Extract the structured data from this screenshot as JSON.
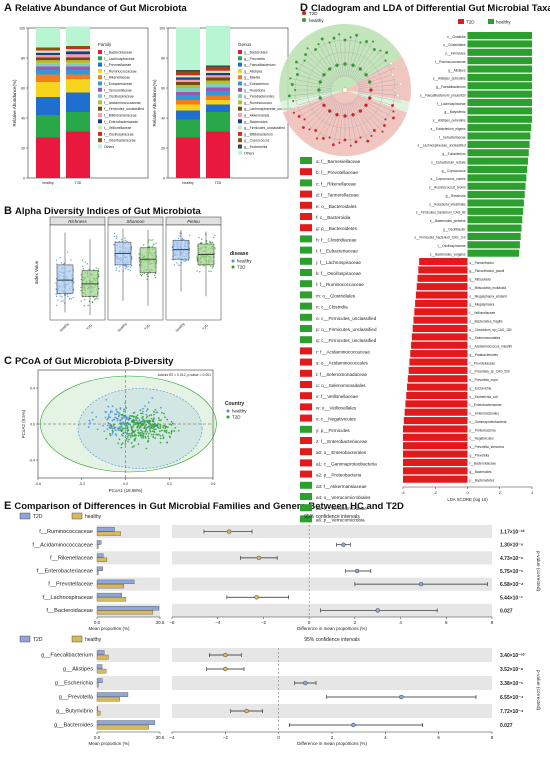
{
  "panels": {
    "A": {
      "letter": "A",
      "title": "Relative Abundance of Gut Microbiota"
    },
    "B": {
      "letter": "B",
      "title": "Alpha Diversity Indices of Gut Microbiota"
    },
    "C": {
      "letter": "C",
      "title": "PCoA of Gut Microbiota β-Diversity"
    },
    "D": {
      "letter": "D",
      "title": "Cladogram and LDA of Differential Gut Microbial Taxa"
    },
    "E": {
      "letter": "E",
      "title": "Comparison of Differences in Gut Microbial Families and Genera Between HC and T2D"
    }
  },
  "colors": {
    "T2D": "#e31a1c",
    "healthy": "#2ca02c",
    "E_T2D": "#8ea6d8",
    "E_healthy": "#d6b95a"
  },
  "chart_data": [
    {
      "id": "A_family",
      "type": "bar",
      "stacked": true,
      "ylabel": "Relative Abundance(%)",
      "ylim": [
        0,
        100
      ],
      "yticks": [
        0,
        20,
        40,
        60,
        80,
        100
      ],
      "categories": [
        "healthy",
        "T2D"
      ],
      "legend_title": "Family",
      "series": [
        {
          "name": "f__Bacteroidaceae",
          "color": "#e8193c",
          "values": [
            27,
            31
          ]
        },
        {
          "name": "f__Lachnospiraceae",
          "color": "#29a84a",
          "values": [
            15,
            13
          ]
        },
        {
          "name": "f__Prevotellaceae",
          "color": "#1f6fd1",
          "values": [
            12,
            13
          ]
        },
        {
          "name": "f__Ruminococcaceae",
          "color": "#f7d41c",
          "values": [
            10,
            9
          ]
        },
        {
          "name": "f__Rikenellaceae",
          "color": "#f47b20",
          "values": [
            5,
            3
          ]
        },
        {
          "name": "f__Eubacteriaceae",
          "color": "#2e9bd6",
          "values": [
            3,
            3
          ]
        },
        {
          "name": "f__Tannerellaceae",
          "color": "#9b59b6",
          "values": [
            2.5,
            2.5
          ]
        },
        {
          "name": "f__Oscillospiraceae",
          "color": "#7fcdbb",
          "values": [
            2,
            2
          ]
        },
        {
          "name": "f__Acidaminococcaceae",
          "color": "#bcbd22",
          "values": [
            2,
            2
          ]
        },
        {
          "name": "f__Firmicutes_unclassified",
          "color": "#6b4e16",
          "values": [
            2,
            2
          ]
        },
        {
          "name": "f__Bifidobacteriaceae",
          "color": "#ff9da7",
          "values": [
            1.5,
            2
          ]
        },
        {
          "name": "f__Enterobacteriaceae",
          "color": "#1b3a8a",
          "values": [
            1.5,
            2
          ]
        },
        {
          "name": "f__Veillonellaceae",
          "color": "#c7e9c0",
          "values": [
            1.5,
            1.5
          ]
        },
        {
          "name": "f__Oscillospiraceae",
          "color": "#d62728",
          "values": [
            1,
            1
          ]
        },
        {
          "name": "f__Odoribacteraceae",
          "color": "#8c510a",
          "values": [
            1,
            1
          ]
        },
        {
          "name": "Others",
          "color": "#b8f5d2",
          "values": [
            13,
            13
          ]
        }
      ]
    },
    {
      "id": "A_genus",
      "type": "bar",
      "stacked": true,
      "ylabel": "Relative Abundance(%)",
      "ylim": [
        0,
        100
      ],
      "yticks": [
        0,
        20,
        40,
        60,
        80,
        100
      ],
      "categories": [
        "healthy",
        "T2D"
      ],
      "legend_title": "Genus",
      "series": [
        {
          "name": "g__Bacteroides",
          "color": "#e8193c",
          "values": [
            27,
            31
          ]
        },
        {
          "name": "g__Prevotella",
          "color": "#29a84a",
          "values": [
            12,
            13
          ]
        },
        {
          "name": "g__Faecalibacterium",
          "color": "#1f6fd1",
          "values": [
            6,
            5
          ]
        },
        {
          "name": "g__Alistipes",
          "color": "#f7d41c",
          "values": [
            4,
            3
          ]
        },
        {
          "name": "g__Blautia",
          "color": "#f47b20",
          "values": [
            3,
            3
          ]
        },
        {
          "name": "g__Eubacterium",
          "color": "#2e9bd6",
          "values": [
            3,
            3
          ]
        },
        {
          "name": "g__Roseburia",
          "color": "#9b59b6",
          "values": [
            2.5,
            2.5
          ]
        },
        {
          "name": "g__Parabacteroides",
          "color": "#7fcdbb",
          "values": [
            2.5,
            2.5
          ]
        },
        {
          "name": "g__Ruminococcus",
          "color": "#bcbd22",
          "values": [
            2,
            2
          ]
        },
        {
          "name": "g__Lachnospiraceae_unclassified",
          "color": "#6b4e16",
          "values": [
            2,
            2
          ]
        },
        {
          "name": "g__Akkermansia",
          "color": "#ff9da7",
          "values": [
            1.5,
            1.5
          ]
        },
        {
          "name": "g__Bacteroides",
          "color": "#1b3a8a",
          "values": [
            1.5,
            1.5
          ]
        },
        {
          "name": "g__Firmicutes_unclassified",
          "color": "#c7e9c0",
          "values": [
            1.5,
            1.5
          ]
        },
        {
          "name": "g__Bifidobacterium",
          "color": "#d62728",
          "values": [
            1.5,
            1.5
          ]
        },
        {
          "name": "g__Coprococcus",
          "color": "#8c510a",
          "values": [
            1,
            1
          ]
        },
        {
          "name": "g__Escherichia",
          "color": "#444444",
          "values": [
            1,
            1
          ]
        },
        {
          "name": "Others",
          "color": "#b8f5d2",
          "values": [
            28.5,
            26.5
          ]
        }
      ]
    },
    {
      "id": "B",
      "type": "box",
      "ylabel": "Index Value",
      "categories": [
        "healthy",
        "T2D"
      ],
      "facets": [
        {
          "name": "Richness",
          "stats": [
            [
              0.08,
              0.28,
              0.42,
              0.58,
              0.92
            ],
            [
              0.05,
              0.25,
              0.38,
              0.52,
              0.85
            ]
          ]
        },
        {
          "name": "Shannon",
          "stats": [
            [
              0.2,
              0.58,
              0.7,
              0.82,
              0.96
            ],
            [
              0.15,
              0.5,
              0.64,
              0.76,
              0.95
            ]
          ]
        },
        {
          "name": "Pielou",
          "stats": [
            [
              0.3,
              0.64,
              0.74,
              0.84,
              0.95
            ],
            [
              0.25,
              0.58,
              0.69,
              0.8,
              0.93
            ]
          ]
        }
      ],
      "legend_title": "disease",
      "legend": [
        "healthy",
        "T2D"
      ]
    },
    {
      "id": "C",
      "type": "scatter",
      "xlabel": "PCoA1 (18.98%)",
      "ylabel": "PCoA2 (9.5%)",
      "xlim": [
        -0.6,
        0.6
      ],
      "ylim": [
        -0.6,
        0.6
      ],
      "xticks": [
        -0.6,
        -0.3,
        0.0,
        0.3,
        0.6
      ],
      "yticks": [
        -0.4,
        0.0,
        0.4
      ],
      "annotation": "Adonis R2 = 0.012, p-value = 0.001",
      "legend_title": "Country",
      "legend": [
        "healthy",
        "T2D"
      ]
    },
    {
      "id": "D_lda",
      "type": "bar",
      "orientation": "horizontal",
      "xlabel": "LDA SCORE (log 10)",
      "xlim": [
        -4,
        4
      ],
      "xticks": [
        -4,
        -2,
        0,
        2,
        4
      ],
      "legend": [
        "T2D",
        "healthy"
      ],
      "series": [
        {
          "name": "healthy",
          "labels": [
            "c__Clostridia",
            "o__Clostridiales",
            "p__Firmicutes",
            "f__Ruminococcaceae",
            "g__Alistipes",
            "s__Alistipes_putredinis",
            "g__Faecalibacterium",
            "s__Faecalibacterium_prausnitzii",
            "f__Lachnospiraceae",
            "g__Butyrivibrio",
            "s__Alistipes_putredinis",
            "s__Eubacterium_eligens",
            "f__Eubacteriaceae",
            "s__Lachnospiraceae_unclassified",
            "g__Eubacterium",
            "s__Eubacterium_rectale",
            "g__Coprococcus",
            "s__Coprococcus_comes",
            "s__Ruminococcus_bromii",
            "g__Roseburia",
            "s__Roseburia_intestinalis",
            "s__Firmicutes_bacterium_CAG_83",
            "s__Bacteroides_plebeius",
            "g__Oscillibacter",
            "s__Firmicutes_bacterium_CAG_110",
            "f__Oscillospiraceae",
            "s__Bacteroides_vulgatus"
          ],
          "values": [
            4.5,
            4.5,
            4.45,
            4.35,
            4.3,
            4.25,
            4.2,
            4.15,
            4.1,
            4.05,
            4.0,
            3.95,
            3.9,
            3.85,
            3.8,
            3.75,
            3.7,
            3.65,
            3.6,
            3.55,
            3.5,
            3.45,
            3.4,
            3.35,
            3.3,
            3.25,
            3.2
          ]
        },
        {
          "name": "T2D",
          "labels": [
            "s__Flavonifractor",
            "g__Flavonifractor_plautii",
            "g__Mitsuokella",
            "s__Mitsuokella_multacida",
            "s__Megasphaera_elsdenii",
            "g__Megasphaera",
            "f__Veillonellaceae",
            "s__Bacteroides_fragilis",
            "s__Clostridium_sp_CAG_180",
            "o__Selenomonadales",
            "s__Acidaminococcus_intestini",
            "g__Parabacteroides",
            "f__Prevotellaceae",
            "s__Prevotella_sp_CAG_520",
            "s__Prevotella_copri",
            "g__Escherichia",
            "s__Escherichia_coli",
            "f__Enterobacteriaceae",
            "o__Enterobacterales",
            "c__Gammaproteobacteria",
            "p__Proteobacteria",
            "c__Negativicutes",
            "s__Prevotella_stercorea",
            "g__Prevotella",
            "f__Bacteroidaceae",
            "g__Bacteroides",
            "p__Bacteroidetes"
          ],
          "values": [
            -3.0,
            -3.05,
            -3.1,
            -3.15,
            -3.2,
            -3.25,
            -3.3,
            -3.35,
            -3.4,
            -3.45,
            -3.5,
            -3.55,
            -3.6,
            -3.65,
            -3.7,
            -3.75,
            -3.8,
            -3.85,
            -3.9,
            -3.95,
            -4.0,
            -4.05,
            -4.1,
            -4.15,
            -4.2,
            -4.3,
            -4.4
          ]
        }
      ]
    },
    {
      "id": "E_family",
      "type": "bar_ci",
      "ci_title": "95% confidence intervals",
      "bar_xlabel": "Mean proportion (%)",
      "bar_xlim": [
        0,
        30.5
      ],
      "bar_xticks": [
        "0.0",
        "30.5"
      ],
      "diff_xlabel": "Difference in mean proportions (%)",
      "diff_xlim": [
        -6,
        8
      ],
      "diff_xticks": [
        "−6",
        "−4",
        "−2",
        "0",
        "2",
        "4",
        "6",
        "8"
      ],
      "pvalue_label": "p-value (corrected)",
      "legend": [
        "T2D",
        "healthy"
      ],
      "categories": [
        "f__Ruminococcaceae",
        "f__Acidaminococcaceae",
        "f__Rikenellaceae",
        "f__Enterobacteriaceae",
        "f__Prevotellaceae",
        "f__Lachnospiraceae",
        "f__Bacteroidaceae"
      ],
      "T2D_values": [
        8.5,
        2.0,
        3.0,
        2.8,
        18.0,
        12.0,
        30.0
      ],
      "healthy_values": [
        11.5,
        0.6,
        4.8,
        0.6,
        13.0,
        14.0,
        27.0
      ],
      "diff": [
        -3.5,
        1.5,
        -2.2,
        2.1,
        4.9,
        -2.3,
        3.0
      ],
      "ci_low": [
        -4.6,
        1.2,
        -3.0,
        1.6,
        2.0,
        -3.6,
        0.5
      ],
      "ci_high": [
        -2.5,
        1.8,
        -1.4,
        2.7,
        7.8,
        -0.9,
        5.6
      ],
      "favored": [
        "healthy",
        "T2D",
        "healthy",
        "T2D",
        "T2D",
        "healthy",
        "T2D"
      ],
      "pvalues": [
        "1.17×10⁻¹⁰",
        "1.30×10⁻⁹",
        "4.73×10⁻⁹",
        "5.75×10⁻⁵",
        "6.58×10⁻⁴",
        "5.44×10⁻³",
        "0.027"
      ]
    },
    {
      "id": "E_genus",
      "type": "bar_ci",
      "ci_title": "95% confidence intervals",
      "bar_xlabel": "Mean proportion (%)",
      "bar_xlim": [
        0,
        30.5
      ],
      "bar_xticks": [
        "0.0",
        "30.5"
      ],
      "diff_xlabel": "Difference in mean proportions (%)",
      "diff_xlim": [
        -4,
        8
      ],
      "diff_xticks": [
        "−4",
        "−2",
        "0",
        "2",
        "4",
        "6",
        "8"
      ],
      "pvalue_label": "p-value (corrected)",
      "legend": [
        "T2D",
        "healthy"
      ],
      "categories": [
        "g__Faecalibacterium",
        "g__Alistipes",
        "g__Escherichia",
        "g__Prevotella",
        "g__Butyrivibrio",
        "g__Bacteroides"
      ],
      "T2D_values": [
        3.5,
        2.5,
        2.6,
        15.0,
        0.4,
        28.0
      ],
      "healthy_values": [
        5.5,
        4.5,
        0.6,
        11.0,
        1.6,
        25.0
      ],
      "diff": [
        -2.0,
        -2.0,
        1.0,
        4.6,
        -1.2,
        2.8
      ],
      "ci_low": [
        -2.6,
        -2.7,
        0.6,
        1.8,
        -1.8,
        0.4
      ],
      "ci_high": [
        -1.4,
        -1.3,
        1.4,
        7.4,
        -0.6,
        5.4
      ],
      "favored": [
        "healthy",
        "healthy",
        "T2D",
        "T2D",
        "healthy",
        "T2D"
      ],
      "pvalues": [
        "3.40×10⁻¹⁰",
        "3.52×10⁻⁸",
        "3.38×10⁻⁶",
        "6.55×10⁻⁴",
        "7.72×10⁻⁴",
        "0.027"
      ]
    }
  ],
  "cladogram": {
    "legend": [
      "T2D",
      "healthy"
    ],
    "key": [
      {
        "code": "a",
        "name": "f__Barnesiellaceae",
        "group": "healthy"
      },
      {
        "code": "b",
        "name": "f__Prevotellaceae",
        "group": "T2D"
      },
      {
        "code": "c",
        "name": "f__Rikenellaceae",
        "group": "healthy"
      },
      {
        "code": "d",
        "name": "f__Tannerellaceae",
        "group": "T2D"
      },
      {
        "code": "e",
        "name": "o__Bacteroidales",
        "group": "T2D"
      },
      {
        "code": "f",
        "name": "c__Bacteroidia",
        "group": "T2D"
      },
      {
        "code": "g",
        "name": "p__Bacteroidetes",
        "group": "T2D"
      },
      {
        "code": "h",
        "name": "f__Clostridiaceae",
        "group": "healthy"
      },
      {
        "code": "i",
        "name": "f__Eubacteriaceae",
        "group": "healthy"
      },
      {
        "code": "j",
        "name": "f__Lachnospiraceae",
        "group": "healthy"
      },
      {
        "code": "k",
        "name": "f__Oscillospiraceae",
        "group": "healthy"
      },
      {
        "code": "l",
        "name": "f__Ruminococcaceae",
        "group": "healthy"
      },
      {
        "code": "m",
        "name": "o__Clostridiales",
        "group": "healthy"
      },
      {
        "code": "n",
        "name": "c__Clostridia",
        "group": "healthy"
      },
      {
        "code": "o",
        "name": "c__Firmicutes_unclassified",
        "group": "healthy"
      },
      {
        "code": "p",
        "name": "o__Firmicutes_unclassified",
        "group": "healthy"
      },
      {
        "code": "q",
        "name": "c__Firmicutes_unclassified",
        "group": "healthy"
      },
      {
        "code": "r",
        "name": "f__Acidaminococcaceae",
        "group": "T2D"
      },
      {
        "code": "s",
        "name": "o__Acidaminococcales",
        "group": "T2D"
      },
      {
        "code": "t",
        "name": "f__Selenomonadaceae",
        "group": "T2D"
      },
      {
        "code": "u",
        "name": "o__Selenomonadales",
        "group": "T2D"
      },
      {
        "code": "v",
        "name": "f__Veillonellaceae",
        "group": "T2D"
      },
      {
        "code": "w",
        "name": "o__Veillonellales",
        "group": "T2D"
      },
      {
        "code": "x",
        "name": "c__Negativicutes",
        "group": "T2D"
      },
      {
        "code": "y",
        "name": "p__Firmicutes",
        "group": "healthy"
      },
      {
        "code": "z",
        "name": "f__Enterobacteriaceae",
        "group": "T2D"
      },
      {
        "code": "a0",
        "name": "o__Enterobacterales",
        "group": "T2D"
      },
      {
        "code": "a1",
        "name": "c__Gammaproteobacteria",
        "group": "T2D"
      },
      {
        "code": "a2",
        "name": "p__Proteobacteria",
        "group": "T2D"
      },
      {
        "code": "a3",
        "name": "f__Akkermansiaceae",
        "group": "healthy"
      },
      {
        "code": "a4",
        "name": "o__Verrucomicrobiales",
        "group": "healthy"
      },
      {
        "code": "a5",
        "name": "c__Verrucomicrobiae",
        "group": "healthy"
      },
      {
        "code": "a6",
        "name": "p__Verrucomicrobia",
        "group": "healthy"
      }
    ]
  }
}
